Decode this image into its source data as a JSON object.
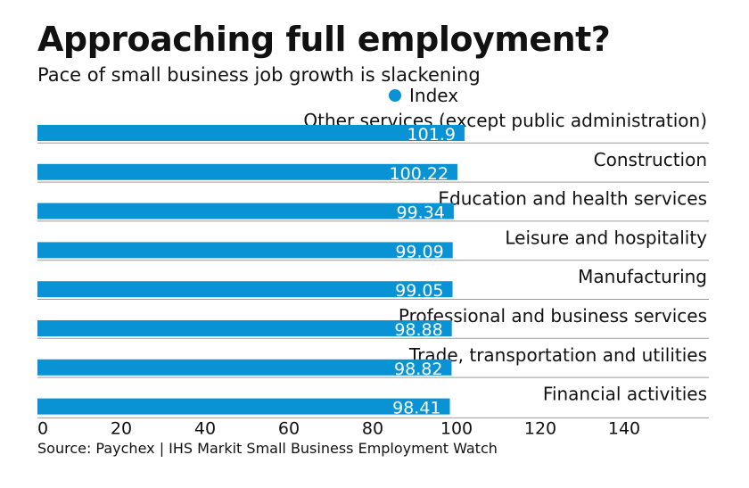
{
  "title": "Approaching full employment?",
  "subtitle": "Pace of small business job growth is slackening",
  "source": "Source: Paychex | IHS Markit Small Business Employment Watch",
  "colors": {
    "bar": "#0a93d4",
    "bar_label": "#ffffff",
    "gridline": "#9a9a9a",
    "text": "#111111"
  },
  "chart_data": {
    "type": "bar",
    "orientation": "horizontal",
    "categories": [
      "Other services (except public administration)",
      "Construction",
      "Education and health services",
      "Leisure and hospitality",
      "Manufacturing",
      "Professional and business services",
      "Trade, transportation and utilities",
      "Financial activities"
    ],
    "series": [
      {
        "name": "Index",
        "values": [
          101.9,
          100.22,
          99.34,
          99.09,
          99.05,
          98.88,
          98.82,
          98.41
        ],
        "value_labels": [
          "101.9",
          "100.22",
          "99.34",
          "99.09",
          "99.05",
          "98.88",
          "98.82",
          "98.41"
        ]
      }
    ],
    "xlim": [
      0,
      160
    ],
    "xticks": [
      0,
      20,
      40,
      60,
      80,
      100,
      120,
      140
    ],
    "xtick_labels": [
      "0",
      "20",
      "40",
      "60",
      "80",
      "100",
      "120",
      "140"
    ],
    "legend": "top-center",
    "grid": false
  }
}
